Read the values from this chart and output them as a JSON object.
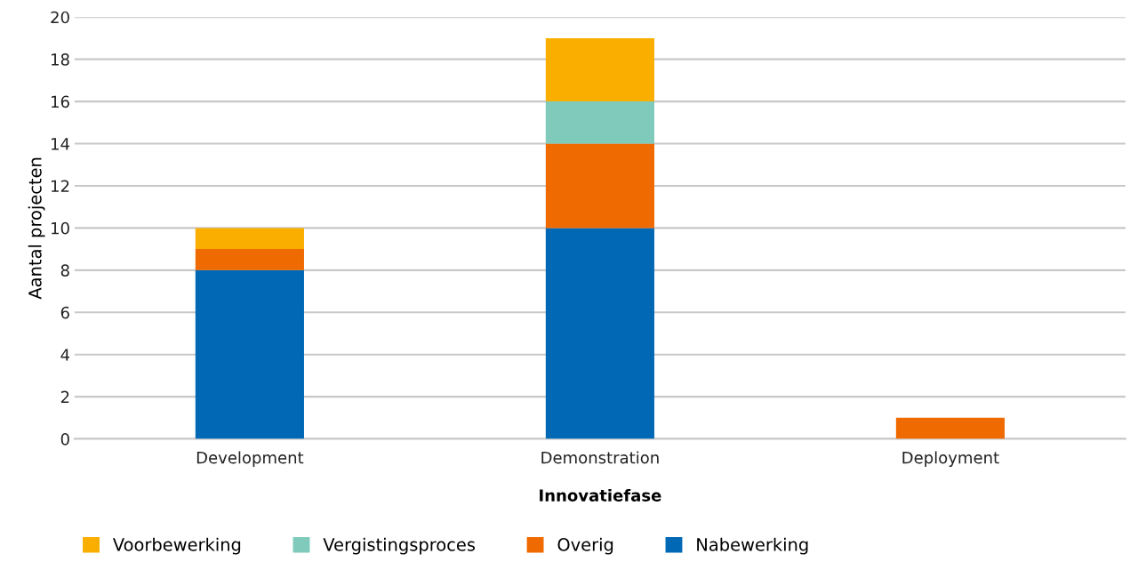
{
  "chart_data": {
    "type": "bar",
    "stacked": true,
    "xlabel": "Innovatiefase",
    "ylabel": "Aantal projecten",
    "categories": [
      "Development",
      "Demonstration",
      "Deployment"
    ],
    "series": [
      {
        "name": "Nabewerking",
        "color": "#0068b4",
        "values": [
          8,
          10,
          null
        ]
      },
      {
        "name": "Overig",
        "color": "#ef6a00",
        "values": [
          1,
          4,
          1
        ]
      },
      {
        "name": "Vergistingsproces",
        "color": "#7fcabb",
        "values": [
          null,
          2,
          null
        ]
      },
      {
        "name": "Voorbewerking",
        "color": "#f9ae00",
        "values": [
          1,
          3,
          null
        ]
      }
    ],
    "ylim": [
      0,
      20
    ],
    "yticks": [
      0,
      2,
      4,
      6,
      8,
      10,
      12,
      14,
      16,
      18,
      20
    ],
    "grid": "y",
    "legend": "bottom"
  }
}
